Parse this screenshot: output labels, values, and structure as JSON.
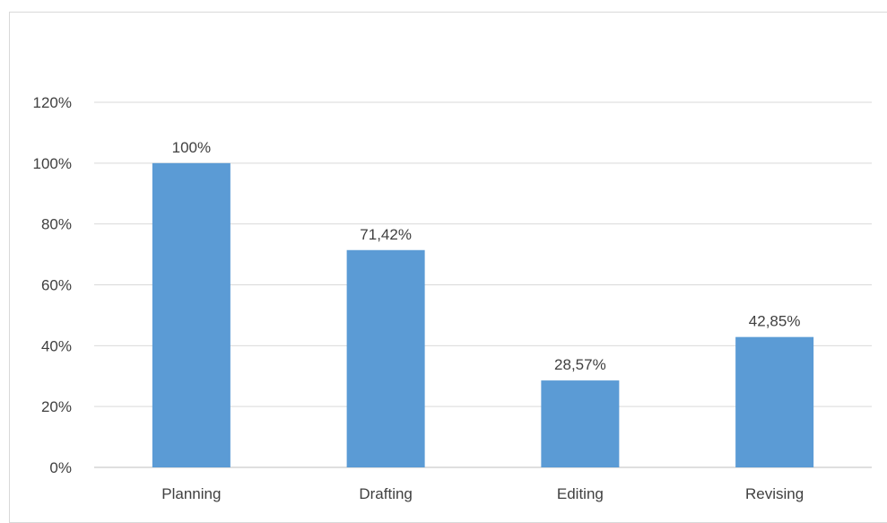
{
  "chart_data": {
    "type": "bar",
    "categories": [
      "Planning",
      "Drafting",
      "Editing",
      "Revising"
    ],
    "values": [
      100,
      71.42,
      28.57,
      42.85
    ],
    "data_labels": [
      "100%",
      "71,42%",
      "28,57%",
      "42,85%"
    ],
    "title": "",
    "xlabel": "",
    "ylabel": "",
    "ylim": [
      0,
      120
    ],
    "y_ticks": [
      0,
      20,
      40,
      60,
      80,
      100,
      120
    ],
    "y_tick_labels": [
      "0%",
      "20%",
      "40%",
      "60%",
      "80%",
      "100%",
      "120%"
    ],
    "grid": true,
    "legend": "none",
    "bar_color": "#5b9bd5",
    "grid_color": "#d9d9d9",
    "text_color": "#404040"
  }
}
